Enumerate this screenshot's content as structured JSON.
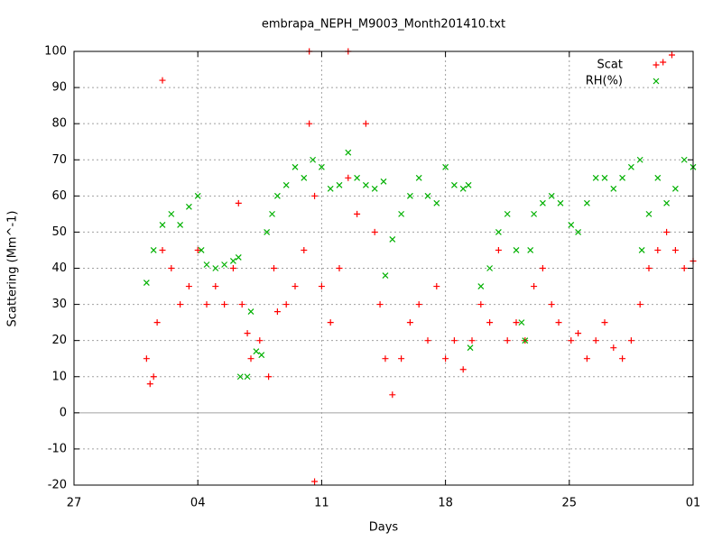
{
  "chart_data": {
    "type": "scatter",
    "title": "embrapa_NEPH_M9003_Month201410.txt",
    "x_label": "Days",
    "y_label": "Scattering (Mm^-1)",
    "xlim": [
      0,
      35
    ],
    "xticks": [
      {
        "value": 0,
        "label": "27"
      },
      {
        "value": 7,
        "label": "04"
      },
      {
        "value": 14,
        "label": "11"
      },
      {
        "value": 21,
        "label": "18"
      },
      {
        "value": 28,
        "label": "25"
      },
      {
        "value": 35,
        "label": "01"
      }
    ],
    "ylim": [
      -20,
      100
    ],
    "yticks": [
      -20,
      -10,
      0,
      10,
      20,
      30,
      40,
      50,
      60,
      70,
      80,
      90,
      100
    ],
    "grid": true,
    "legend": "top-right",
    "series": [
      {
        "name": "Scat",
        "color": "#ff0000",
        "marker": "plus",
        "x": [
          4.1,
          4.3,
          4.5,
          4.7,
          5.0,
          5.0,
          5.5,
          6.0,
          6.5,
          7.0,
          7.5,
          8.0,
          8.5,
          9.0,
          9.3,
          9.5,
          9.8,
          10.0,
          10.5,
          11.0,
          11.3,
          11.5,
          12.0,
          12.5,
          13.0,
          13.3,
          13.3,
          13.6,
          13.6,
          14.0,
          14.5,
          15.0,
          15.5,
          15.5,
          16.0,
          16.5,
          17.0,
          17.3,
          17.6,
          18.0,
          18.5,
          19.0,
          19.5,
          20.0,
          20.5,
          21.0,
          21.5,
          22.0,
          22.5,
          23.0,
          23.5,
          24.0,
          24.5,
          25.0,
          25.5,
          26.0,
          26.5,
          27.0,
          27.4,
          28.1,
          28.5,
          29.0,
          29.5,
          30.0,
          30.5,
          31.0,
          31.5,
          32.0,
          32.5,
          33.0,
          33.3,
          33.5,
          33.8,
          34.0,
          34.5,
          35.0
        ],
        "values": [
          15,
          8,
          10,
          25,
          45,
          92,
          40,
          30,
          35,
          45,
          30,
          35,
          30,
          40,
          58,
          30,
          22,
          15,
          20,
          10,
          40,
          28,
          30,
          35,
          45,
          80,
          100,
          60,
          -19,
          35,
          25,
          40,
          65,
          100,
          55,
          80,
          50,
          30,
          15,
          5,
          15,
          25,
          30,
          20,
          35,
          15,
          20,
          12,
          20,
          30,
          25,
          45,
          20,
          25,
          20,
          35,
          40,
          30,
          25,
          20,
          22,
          15,
          20,
          25,
          18,
          15,
          20,
          30,
          40,
          45,
          97,
          50,
          99,
          45,
          40,
          42
        ]
      },
      {
        "name": "RH(%)",
        "color": "#00b000",
        "marker": "cross",
        "x": [
          4.1,
          4.5,
          5.0,
          5.5,
          6.0,
          6.5,
          7.0,
          7.2,
          7.5,
          8.0,
          8.5,
          9.0,
          9.3,
          9.4,
          9.8,
          10.0,
          10.3,
          10.6,
          10.9,
          11.2,
          11.5,
          12.0,
          12.5,
          13.0,
          13.5,
          14.0,
          14.5,
          15.0,
          15.5,
          16.0,
          16.5,
          17.0,
          17.5,
          17.6,
          18.0,
          18.5,
          19.0,
          19.5,
          20.0,
          20.5,
          21.0,
          21.5,
          22.0,
          22.3,
          22.4,
          23.0,
          23.5,
          24.0,
          24.5,
          25.0,
          25.3,
          25.5,
          25.8,
          26.0,
          26.5,
          27.0,
          27.5,
          28.1,
          28.5,
          29.0,
          29.5,
          30.0,
          30.5,
          31.0,
          31.5,
          32.0,
          32.1,
          32.5,
          33.0,
          33.5,
          34.0,
          34.5,
          35.0
        ],
        "values": [
          36,
          45,
          52,
          55,
          52,
          57,
          60,
          45,
          41,
          40,
          41,
          42,
          43,
          10,
          10,
          28,
          17,
          16,
          50,
          55,
          60,
          63,
          68,
          65,
          70,
          68,
          62,
          63,
          72,
          65,
          63,
          62,
          64,
          38,
          48,
          55,
          60,
          65,
          60,
          58,
          68,
          63,
          62,
          63,
          18,
          35,
          40,
          50,
          55,
          45,
          25,
          20,
          45,
          55,
          58,
          60,
          58,
          52,
          50,
          58,
          65,
          65,
          62,
          65,
          68,
          70,
          45,
          55,
          65,
          58,
          62,
          70,
          68
        ]
      }
    ]
  }
}
